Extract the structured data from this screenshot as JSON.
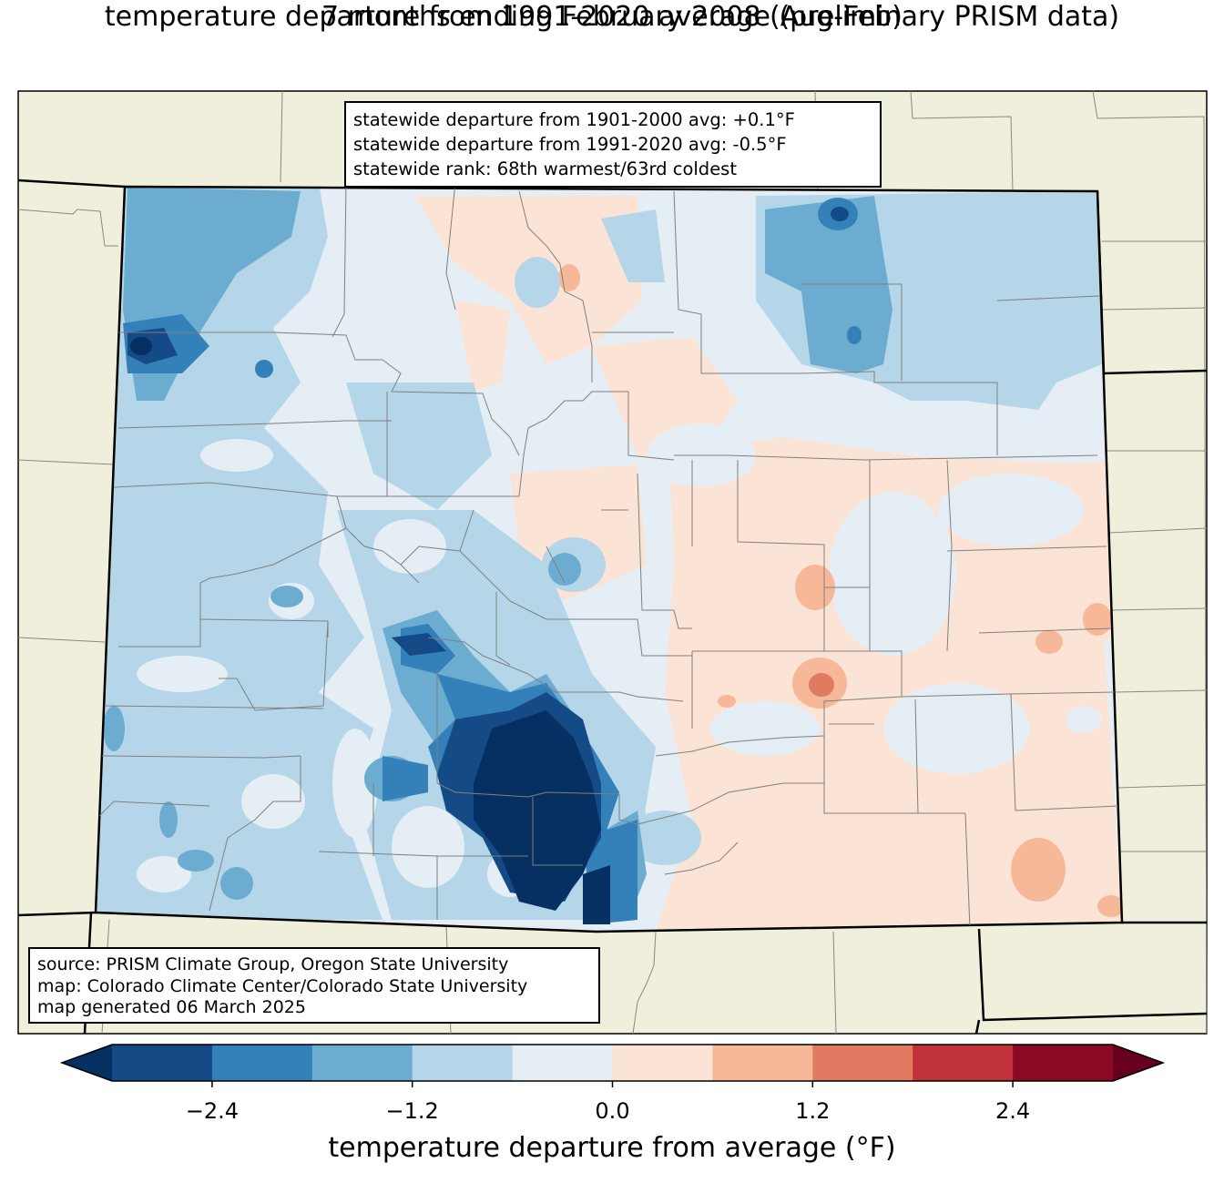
{
  "title": {
    "line1": "temperature departure from 1991-2020 average (preliminary PRISM data)",
    "line2": "7 months ending February 2008 (Aug-Feb)"
  },
  "stats": {
    "line1": "statewide departure from 1901-2000 avg: +0.1°F",
    "line2": "statewide departure from 1991-2020 avg: -0.5°F",
    "line3": "statewide rank: 68th warmest/63rd coldest"
  },
  "source": {
    "line1": "source: PRISM Climate Group, Oregon State University",
    "line2": "map: Colorado Climate Center/Colorado State University",
    "line3": "map generated 06 March 2025"
  },
  "colorbar": {
    "title": "temperature departure from average (°F)",
    "ticks": [
      "−2.4",
      "−1.2",
      "0.0",
      "1.2",
      "2.4"
    ],
    "tick_values": [
      -2.4,
      -1.2,
      0.0,
      1.2,
      2.4
    ],
    "bounds": [
      -3.0,
      3.0
    ],
    "step": 0.6,
    "under_color": "#053061",
    "over_color": "#67001f",
    "colors": [
      "#144a86",
      "#3480b9",
      "#6bacd0",
      "#b4d6e8",
      "#e5eef4",
      "#fbe4d6",
      "#f7b799",
      "#e07b62",
      "#bf3338",
      "#8a0a26"
    ]
  },
  "colors": {
    "land": "#f0efdc",
    "neutral_cool": "#e5eef4",
    "neutral_warm": "#fbe4d6"
  }
}
